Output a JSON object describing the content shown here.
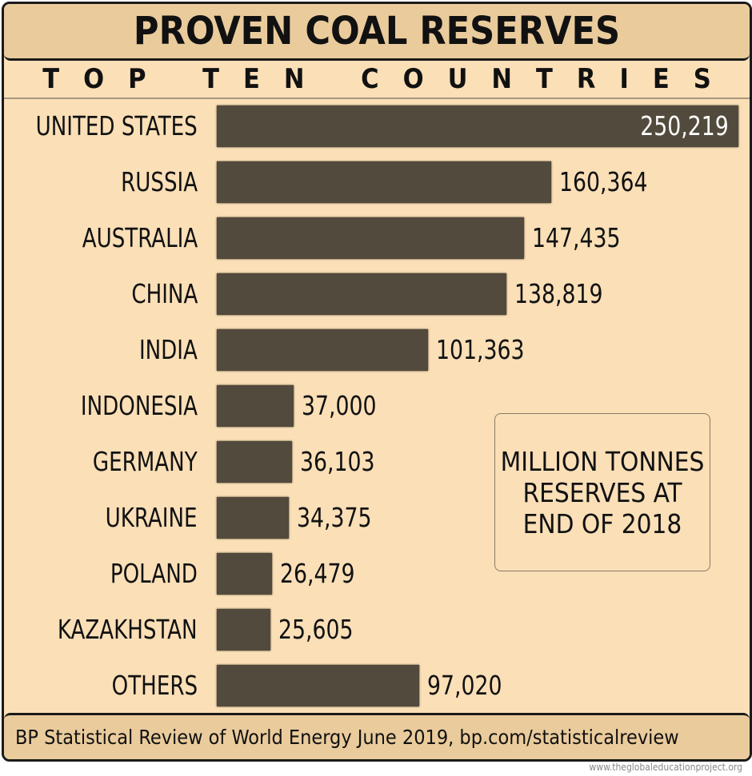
{
  "chart_data": {
    "type": "bar",
    "orientation": "horizontal",
    "title": "PROVEN COAL RESERVES",
    "subtitle": "TOP TEN COUNTRIES",
    "categories": [
      "UNITED STATES",
      "RUSSIA",
      "AUSTRALIA",
      "CHINA",
      "INDIA",
      "INDONESIA",
      "GERMANY",
      "UKRAINE",
      "POLAND",
      "KAZAKHSTAN",
      "OTHERS"
    ],
    "values": [
      250219,
      160364,
      147435,
      138819,
      101363,
      37000,
      36103,
      34375,
      26479,
      25605,
      97020
    ],
    "value_labels": [
      "250,219",
      "160,364",
      "147,435",
      "138,819",
      "101,363",
      "37,000",
      "36,103",
      "34,375",
      "26,479",
      "25,605",
      "97,020"
    ],
    "unit_note": "MILLION TONNES RESERVES AT END OF 2018",
    "grid": false,
    "colors": {
      "bar": "#524A3C",
      "background": "#FADFB7",
      "header": "#EACB9C"
    }
  },
  "footer": {
    "source": "BP Statistical Review of World Energy June 2019, bp.com/statisticalreview"
  },
  "watermark": "www.theglobaleducationproject.org"
}
